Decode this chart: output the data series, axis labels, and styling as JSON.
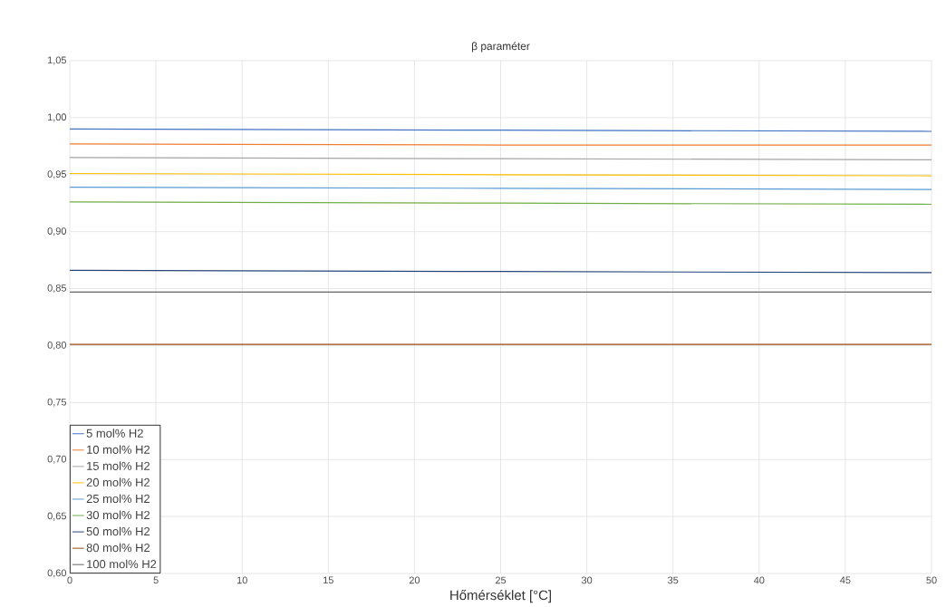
{
  "chart_data": {
    "type": "line",
    "title": "β paraméter",
    "xlabel": "Hőmérséklet [°C]",
    "x": [
      0,
      25,
      50
    ],
    "series": [
      {
        "name": "5 mol% H2",
        "color": "#4472c4",
        "values": [
          0.99,
          0.989,
          0.988
        ]
      },
      {
        "name": "10 mol% H2",
        "color": "#ed7d31",
        "values": [
          0.977,
          0.976,
          0.976
        ]
      },
      {
        "name": "15 mol% H2",
        "color": "#a5a5a5",
        "values": [
          0.965,
          0.964,
          0.963
        ]
      },
      {
        "name": "20 mol% H2",
        "color": "#ffc000",
        "values": [
          0.951,
          0.95,
          0.949
        ]
      },
      {
        "name": "25 mol% H2",
        "color": "#5b9bd5",
        "values": [
          0.939,
          0.938,
          0.937
        ]
      },
      {
        "name": "30 mol% H2",
        "color": "#70ad47",
        "values": [
          0.926,
          0.925,
          0.924
        ]
      },
      {
        "name": "50 mol% H2",
        "color": "#264478",
        "values": [
          0.866,
          0.865,
          0.864
        ]
      },
      {
        "name": "80 mol% H2",
        "color": "#9e480e",
        "values": [
          0.801,
          0.801,
          0.801
        ]
      },
      {
        "name": "100 mol% H2",
        "color": "#636363",
        "values": [
          0.847,
          0.847,
          0.847
        ]
      }
    ],
    "xlim": [
      0,
      50
    ],
    "xticks": [
      0,
      5,
      10,
      15,
      20,
      25,
      30,
      35,
      40,
      45,
      50
    ],
    "ylim": [
      0.6,
      1.05
    ],
    "yticks": [
      {
        "value": 0.6,
        "label": "0,60"
      },
      {
        "value": 0.65,
        "label": "0,65"
      },
      {
        "value": 0.7,
        "label": "0,70"
      },
      {
        "value": 0.75,
        "label": "0,75"
      },
      {
        "value": 0.8,
        "label": "0,80"
      },
      {
        "value": 0.85,
        "label": "0,85"
      },
      {
        "value": 0.9,
        "label": "0,90"
      },
      {
        "value": 0.95,
        "label": "0,95"
      },
      {
        "value": 1.0,
        "label": "1,00"
      },
      {
        "value": 1.05,
        "label": "1,05"
      }
    ],
    "grid": true,
    "legend": "bottom left",
    "marker": "none",
    "line_style": "solid"
  }
}
